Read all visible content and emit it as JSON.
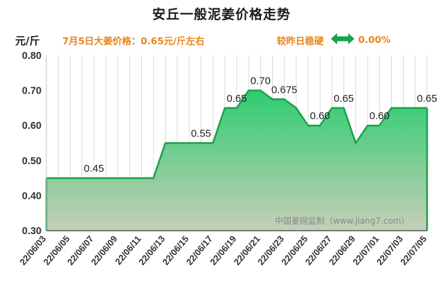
{
  "header": {
    "title": "安丘一般泥姜价格走势",
    "unit": "元/斤",
    "price_note": "7月5日大姜价格：0.65元/斤左右",
    "trend_label": "较昨日稳硬",
    "trend_icon": "double-arrow-icon",
    "trend_value": "0.00%"
  },
  "watermark": "中国姜网监制（www.jiang7.com）",
  "colors": {
    "line": "#19a14a",
    "fill_top": "#2ecc71",
    "fill_bottom": "#c6cfb8",
    "accent": "#e8841c"
  },
  "chart_data": {
    "type": "area",
    "title": "安丘一般泥姜价格走势",
    "ylabel": "元/斤",
    "ylim": [
      0.3,
      0.8
    ],
    "yticks": [
      "0.30",
      "0.40",
      "0.50",
      "0.60",
      "0.70",
      "0.80"
    ],
    "grid": "vertical",
    "x": [
      "22/06/03",
      "22/06/04",
      "22/06/05",
      "22/06/06",
      "22/06/07",
      "22/06/08",
      "22/06/09",
      "22/06/10",
      "22/06/11",
      "22/06/12",
      "22/06/13",
      "22/06/14",
      "22/06/15",
      "22/06/16",
      "22/06/17",
      "22/06/18",
      "22/06/19",
      "22/06/20",
      "22/06/21",
      "22/06/22",
      "22/06/23",
      "22/06/24",
      "22/06/25",
      "22/06/26",
      "22/06/27",
      "22/06/28",
      "22/06/29",
      "22/06/30",
      "22/07/01",
      "22/07/02",
      "22/07/03",
      "22/07/04",
      "22/07/05"
    ],
    "x_tick_labels": [
      "22/06/03",
      "22/06/05",
      "22/06/07",
      "22/06/09",
      "22/06/11",
      "22/06/13",
      "22/06/15",
      "22/06/17",
      "22/06/19",
      "22/06/21",
      "22/06/23",
      "22/06/25",
      "22/06/27",
      "22/06/29",
      "22/07/01",
      "22/07/03",
      "22/07/05"
    ],
    "values": [
      0.45,
      0.45,
      0.45,
      0.45,
      0.45,
      0.45,
      0.45,
      0.45,
      0.45,
      0.45,
      0.55,
      0.55,
      0.55,
      0.55,
      0.55,
      0.65,
      0.65,
      0.7,
      0.7,
      0.675,
      0.675,
      0.65,
      0.6,
      0.6,
      0.65,
      0.65,
      0.55,
      0.6,
      0.6,
      0.65,
      0.65,
      0.65,
      0.65
    ],
    "data_labels": [
      {
        "index": 4,
        "text": "0.45"
      },
      {
        "index": 13,
        "text": "0.55"
      },
      {
        "index": 16,
        "text": "0.65"
      },
      {
        "index": 18,
        "text": "0.70"
      },
      {
        "index": 20,
        "text": "0.675"
      },
      {
        "index": 23,
        "text": "0.60"
      },
      {
        "index": 25,
        "text": "0.65"
      },
      {
        "index": 28,
        "text": "0.60"
      },
      {
        "index": 32,
        "text": "0.65"
      }
    ]
  }
}
